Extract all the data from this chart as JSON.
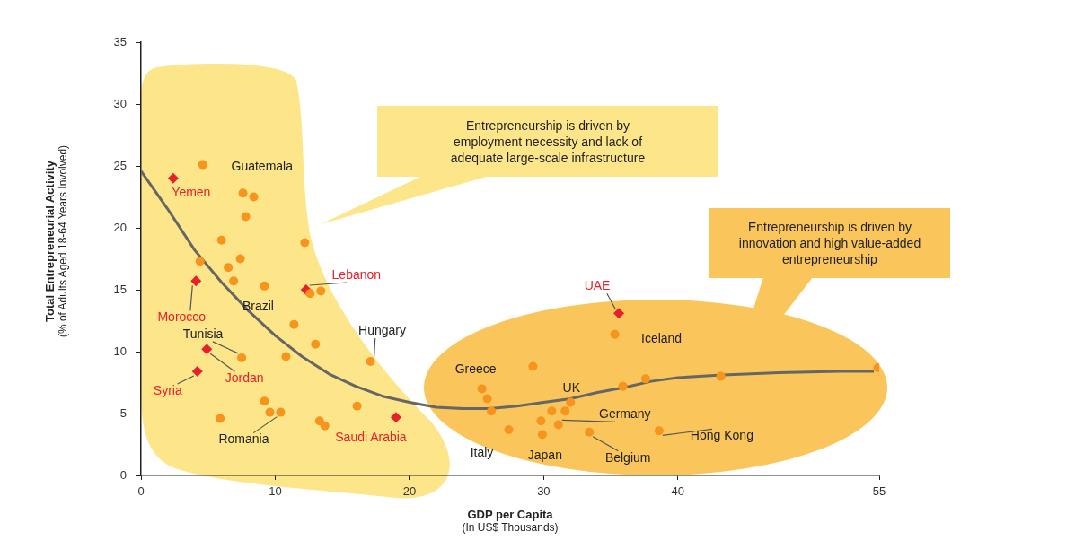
{
  "chart_data": {
    "type": "scatter",
    "xlabel": "GDP per Capita\n(In US$ Thousands)",
    "ylabel": "Total Entrepreneurial Activity\n(% of Adults Aged 18-64 Years Involved)",
    "xlim": [
      0,
      55
    ],
    "xticks": [
      0,
      10,
      20,
      30,
      40,
      55
    ],
    "ylim": [
      0,
      35
    ],
    "yticks": [
      0,
      5,
      10,
      15,
      20,
      25,
      30,
      35
    ],
    "grid": false,
    "legend": false,
    "series": [
      {
        "marker": "circle",
        "color": "#f7941d",
        "x": [
          4.6,
          7.6,
          8.4,
          7.8,
          6.0,
          12.2,
          4.4,
          7.4,
          6.5,
          6.9,
          9.2,
          12.6,
          13.4,
          11.4,
          13.0,
          7.5,
          10.8,
          17.1,
          9.2,
          16.1,
          9.6,
          10.4,
          5.9,
          13.3,
          13.7,
          35.3,
          29.2,
          25.4,
          25.8,
          26.1,
          27.4,
          29.9,
          29.8,
          30.6,
          31.6,
          32.0,
          31.1,
          33.4,
          35.9,
          37.6,
          38.6,
          43.2,
          54.9
        ],
        "values": [
          25.1,
          22.8,
          22.5,
          20.9,
          19.0,
          18.8,
          17.3,
          17.5,
          16.8,
          15.7,
          15.3,
          14.7,
          14.9,
          12.2,
          10.6,
          9.5,
          9.6,
          9.2,
          6.0,
          5.6,
          5.1,
          5.1,
          4.6,
          4.4,
          4.0,
          11.4,
          8.8,
          7.0,
          6.2,
          5.2,
          3.7,
          3.3,
          4.4,
          5.2,
          5.2,
          5.9,
          4.1,
          3.5,
          7.2,
          7.8,
          3.6,
          8.0,
          8.7
        ]
      },
      {
        "marker": "diamond",
        "color": "#e8202a",
        "x": [
          2.4,
          4.1,
          12.3,
          4.9,
          4.2,
          19.0,
          35.6
        ],
        "values": [
          24.0,
          15.7,
          15.0,
          10.2,
          8.4,
          4.7,
          13.1
        ]
      },
      {
        "type": "line",
        "marker": "none",
        "color": "#666666",
        "x": [
          0,
          2,
          4,
          6,
          8,
          10,
          12,
          14,
          16,
          18,
          20,
          22,
          24,
          26,
          28,
          30,
          32,
          34,
          36,
          38,
          40,
          43,
          47.5,
          52,
          54.6
        ],
        "values": [
          24.6,
          21.5,
          18.2,
          15.6,
          13.3,
          11.3,
          9.6,
          8.2,
          7.2,
          6.4,
          5.9,
          5.5,
          5.4,
          5.4,
          5.6,
          5.9,
          6.2,
          6.7,
          7.1,
          7.6,
          7.9,
          8.1,
          8.3,
          8.4,
          8.4
        ]
      }
    ],
    "annotations": [
      "Entrepreneurship is driven by\nemployment necessity and lack of\nadequate large-scale infrastructure",
      "Entrepreneurship is driven by\ninnovation and high value-added\nentrepreneurship",
      {
        "text": "Guatemala",
        "x": 4.6,
        "y": 25.1
      },
      {
        "text": "Yemen",
        "x": 2.4,
        "y": 24.0
      },
      {
        "text": "Morocco",
        "x": 4.1,
        "y": 15.7
      },
      {
        "text": "Brazil",
        "x": 11.4,
        "y": 12.2
      },
      {
        "text": "Tunisia",
        "x": 7.5,
        "y": 9.5
      },
      {
        "text": "Jordan",
        "x": 4.9,
        "y": 10.2
      },
      {
        "text": "Syria",
        "x": 4.2,
        "y": 8.4
      },
      {
        "text": "Lebanon",
        "x": 12.3,
        "y": 15.0
      },
      {
        "text": "Hungary",
        "x": 17.1,
        "y": 9.2
      },
      {
        "text": "Romania",
        "x": 10.4,
        "y": 5.1
      },
      {
        "text": "Saudi Arabia",
        "x": 19.0,
        "y": 4.7
      },
      {
        "text": "UAE",
        "x": 35.6,
        "y": 13.1
      },
      {
        "text": "Iceland",
        "x": 35.3,
        "y": 11.4
      },
      {
        "text": "Greece",
        "x": 25.4,
        "y": 7.0
      },
      {
        "text": "UK",
        "x": 32.0,
        "y": 5.9
      },
      {
        "text": "Germany",
        "x": 31.1,
        "y": 4.1
      },
      {
        "text": "Italy",
        "x": 27.4,
        "y": 3.7
      },
      {
        "text": "Japan",
        "x": 29.9,
        "y": 3.3
      },
      {
        "text": "Belgium",
        "x": 33.4,
        "y": 3.5
      },
      {
        "text": "Hong Kong",
        "x": 38.6,
        "y": 3.6
      }
    ]
  }
}
